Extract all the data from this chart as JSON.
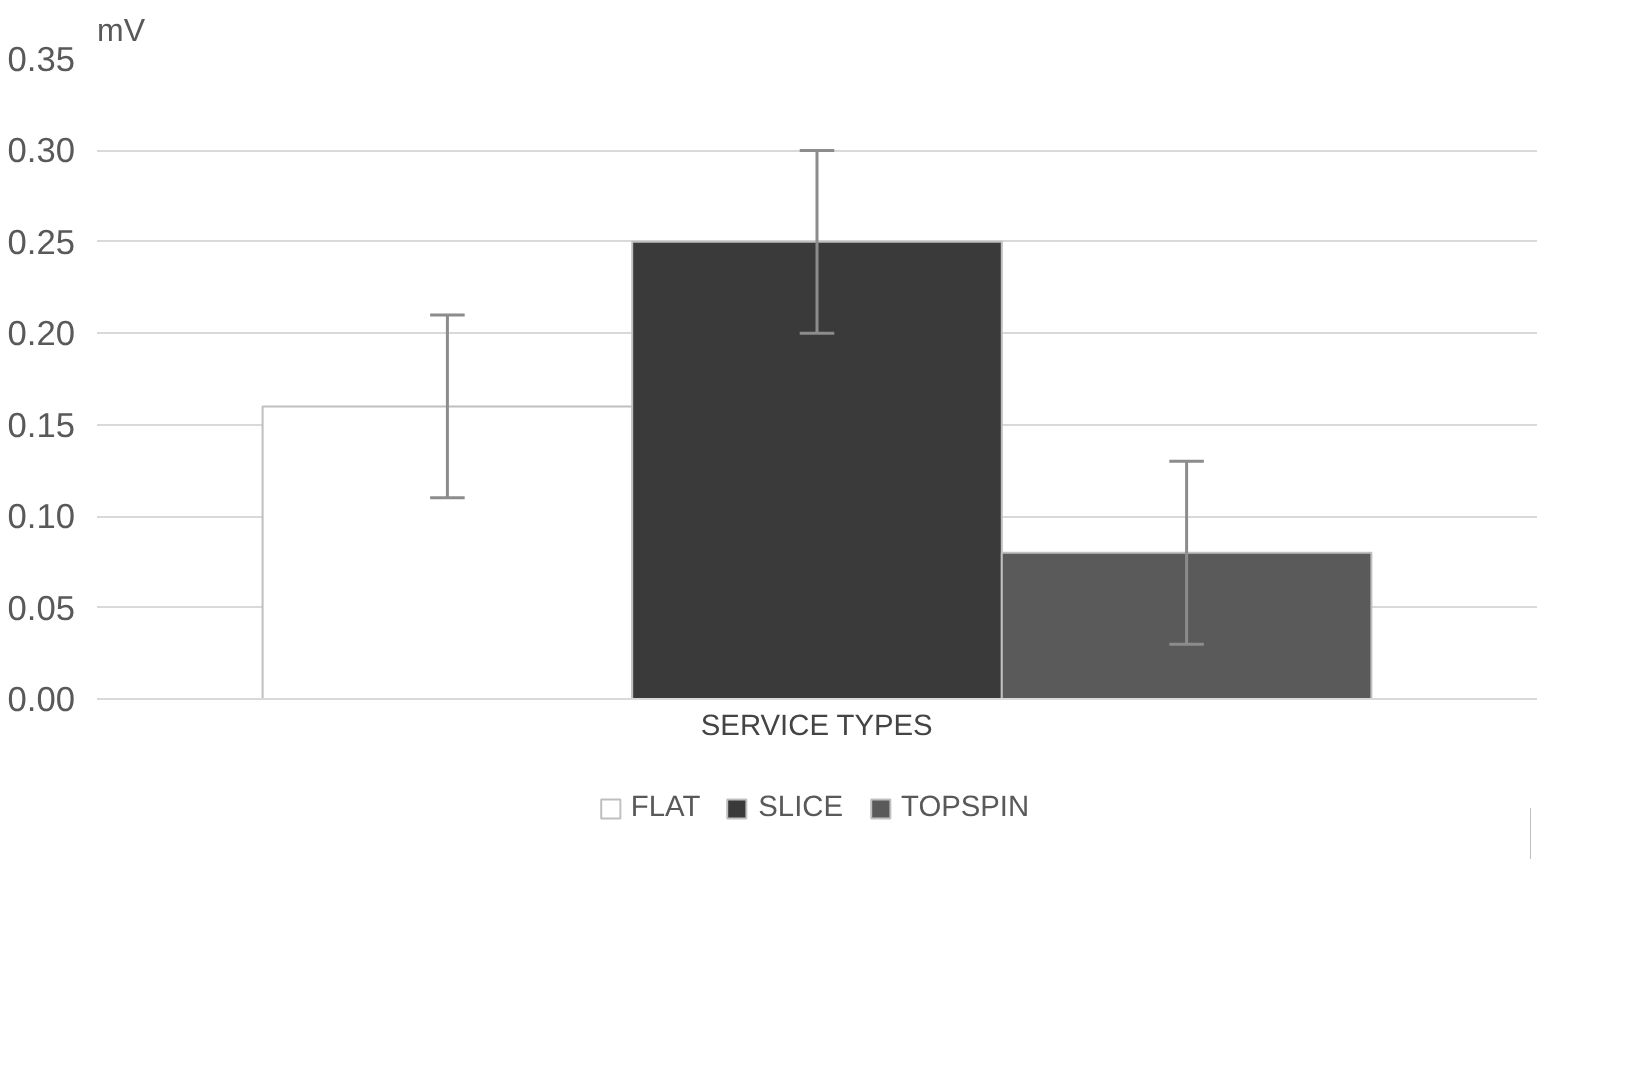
{
  "chart_data": {
    "type": "bar",
    "ylabel": "mV",
    "xlabel": "SERVICE TYPES",
    "categories": [
      null
    ],
    "series": [
      {
        "name": "FLAT",
        "color": "#ffffff",
        "values": [
          0.16
        ],
        "errors": [
          0.05
        ]
      },
      {
        "name": "SLICE",
        "color": "#3a3a3a",
        "values": [
          0.25
        ],
        "errors": [
          0.05
        ]
      },
      {
        "name": "TOPSPIN",
        "color": "#5a5a5a",
        "values": [
          0.08
        ],
        "errors": [
          0.05
        ]
      }
    ],
    "ylim": [
      0,
      0.35
    ],
    "yticks": [
      {
        "value": 0,
        "label": "0.00"
      },
      {
        "value": 0.05,
        "label": "0.05"
      },
      {
        "value": 0.1,
        "label": "0.10"
      },
      {
        "value": 0.15,
        "label": "0.15"
      },
      {
        "value": 0.2,
        "label": "0.20"
      },
      {
        "value": 0.25,
        "label": "0.25"
      },
      {
        "value": 0.3,
        "label": "0.30"
      },
      {
        "value": 0.35,
        "label": "0.35"
      }
    ],
    "grid": "y",
    "legend": "bottom"
  }
}
